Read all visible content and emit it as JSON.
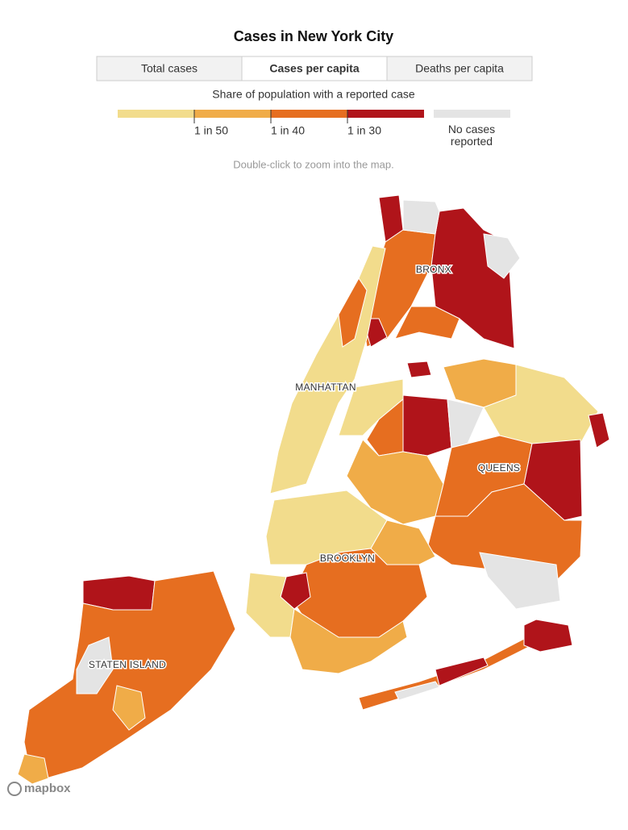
{
  "header": {
    "title": "Cases in New York City"
  },
  "tabs": [
    {
      "label": "Total cases",
      "selected": false
    },
    {
      "label": "Cases per capita",
      "selected": true
    },
    {
      "label": "Deaths per capita",
      "selected": false
    }
  ],
  "legend": {
    "title": "Share of population with a reported case",
    "bins": [
      {
        "color": "#f2dc8c"
      },
      {
        "color": "#f0ac48"
      },
      {
        "color": "#e66e20"
      },
      {
        "color": "#b0141a"
      }
    ],
    "thresholds": [
      "1 in 50",
      "1 in 40",
      "1 in 30"
    ],
    "no_data": {
      "label": "No cases reported",
      "color": "#e4e4e4"
    }
  },
  "hint": "Double-click to zoom into the map.",
  "map": {
    "labels": [
      "BRONX",
      "MANHATTAN",
      "QUEENS",
      "BROOKLYN",
      "STATEN ISLAND"
    ]
  },
  "attribution": "mapbox"
}
